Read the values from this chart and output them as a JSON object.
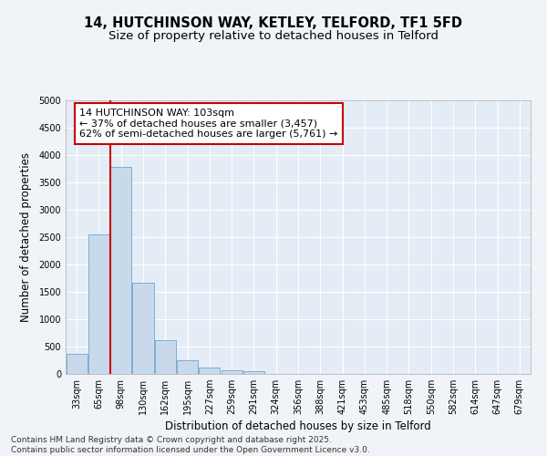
{
  "title1": "14, HUTCHINSON WAY, KETLEY, TELFORD, TF1 5FD",
  "title2": "Size of property relative to detached houses in Telford",
  "xlabel": "Distribution of detached houses by size in Telford",
  "ylabel": "Number of detached properties",
  "categories": [
    "33sqm",
    "65sqm",
    "98sqm",
    "130sqm",
    "162sqm",
    "195sqm",
    "227sqm",
    "259sqm",
    "291sqm",
    "324sqm",
    "356sqm",
    "388sqm",
    "421sqm",
    "453sqm",
    "485sqm",
    "518sqm",
    "550sqm",
    "582sqm",
    "614sqm",
    "647sqm",
    "679sqm"
  ],
  "values": [
    370,
    2550,
    3780,
    1660,
    620,
    245,
    115,
    70,
    50,
    0,
    0,
    0,
    0,
    0,
    0,
    0,
    0,
    0,
    0,
    0,
    0
  ],
  "bar_color": "#c9d9ec",
  "bar_edge_color": "#7bafd4",
  "vline_x_index": 2,
  "vline_color": "#cc0000",
  "annotation_text": "14 HUTCHINSON WAY: 103sqm\n← 37% of detached houses are smaller (3,457)\n62% of semi-detached houses are larger (5,761) →",
  "annotation_box_color": "#ffffff",
  "annotation_box_edge": "#cc0000",
  "ylim": [
    0,
    5000
  ],
  "yticks": [
    0,
    500,
    1000,
    1500,
    2000,
    2500,
    3000,
    3500,
    4000,
    4500,
    5000
  ],
  "footer1": "Contains HM Land Registry data © Crown copyright and database right 2025.",
  "footer2": "Contains public sector information licensed under the Open Government Licence v3.0.",
  "bg_color": "#f0f4f8",
  "plot_bg_color": "#e4edf5",
  "title_fontsize": 10.5,
  "subtitle_fontsize": 9.5,
  "tick_fontsize": 7,
  "label_fontsize": 8.5,
  "annotation_fontsize": 8,
  "footer_fontsize": 6.5
}
